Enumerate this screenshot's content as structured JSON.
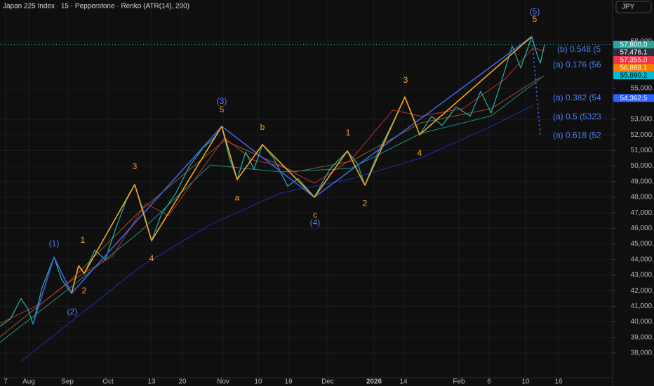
{
  "chart_data": {
    "type": "line",
    "title": "Japan 225 Index · 15 · Pepperstone · Renko (ATR(14), 200)",
    "currency_button": "JPY",
    "grid": true,
    "xlim": [
      0,
      218.25
    ],
    "ylim": [
      36420,
      60660
    ],
    "xticks": [
      {
        "value": 2,
        "label": "7"
      },
      {
        "value": 10.25,
        "label": "Aug"
      },
      {
        "value": 24,
        "label": "Sep"
      },
      {
        "value": 38.5,
        "label": "Oct"
      },
      {
        "value": 54,
        "label": "13"
      },
      {
        "value": 65,
        "label": "20"
      },
      {
        "value": 79.5,
        "label": "Nov"
      },
      {
        "value": 92,
        "label": "10"
      },
      {
        "value": 102.75,
        "label": "19"
      },
      {
        "value": 116.75,
        "label": "Dec"
      },
      {
        "value": 133.25,
        "label": "2026"
      },
      {
        "value": 143.75,
        "label": "14"
      },
      {
        "value": 163.5,
        "label": "Feb"
      },
      {
        "value": 174.25,
        "label": "6"
      },
      {
        "value": 187.25,
        "label": "10"
      },
      {
        "value": 199,
        "label": "16"
      }
    ],
    "yticks": [
      {
        "value": 38000,
        "label": "38,000.0"
      },
      {
        "value": 39000,
        "label": "39,000.0"
      },
      {
        "value": 40000,
        "label": "40,000.0"
      },
      {
        "value": 41000,
        "label": "41,000.0"
      },
      {
        "value": 42000,
        "label": "42,000.0"
      },
      {
        "value": 43000,
        "label": "43,000.0"
      },
      {
        "value": 44000,
        "label": "44,000.0"
      },
      {
        "value": 45000,
        "label": "45,000.0"
      },
      {
        "value": 46000,
        "label": "46,000.0"
      },
      {
        "value": 47000,
        "label": "47,000.0"
      },
      {
        "value": 48000,
        "label": "48,000.0"
      },
      {
        "value": 49000,
        "label": "49,000.0"
      },
      {
        "value": 50000,
        "label": "50,000.0"
      },
      {
        "value": 51000,
        "label": "51,000.0"
      },
      {
        "value": 52000,
        "label": "52,000.0"
      },
      {
        "value": 53000,
        "label": "53,000.0"
      },
      {
        "value": 55000,
        "label": "55,000.0"
      },
      {
        "value": 58000,
        "label": "58,000.0"
      }
    ],
    "series": [
      {
        "color": "#1e2a8c",
        "width": 1.2,
        "x": [
          7.5,
          50,
          75,
          100,
          125,
          150,
          175,
          190
        ],
        "values": [
          37460,
          43540,
          46240,
          48270,
          49170,
          50520,
          52550,
          53900
        ]
      },
      {
        "color": "#1f8f7a",
        "width": 1,
        "x": [
          0,
          25,
          50,
          75,
          100,
          125,
          150,
          175,
          193.75
        ],
        "values": [
          38680,
          42190,
          45800,
          50070,
          49620,
          49850,
          52100,
          53220,
          55790
        ]
      },
      {
        "color": "#8a5a2b",
        "width": 1,
        "x": [
          0,
          25,
          50,
          80,
          105,
          125,
          150,
          175,
          192.5
        ],
        "values": [
          39040,
          42640,
          47140,
          51650,
          49620,
          50300,
          52780,
          53680,
          55700
        ]
      },
      {
        "color": "#b7342f",
        "width": 1,
        "x": [
          0,
          15,
          25,
          40,
          52,
          60,
          80,
          90,
          100,
          112,
          125,
          140,
          150,
          165,
          180,
          190,
          194
        ],
        "values": [
          39900,
          41200,
          42600,
          44200,
          47600,
          46800,
          51800,
          50400,
          50000,
          48900,
          50400,
          53600,
          53200,
          53700,
          55600,
          57600,
          57355
        ]
      },
      {
        "color": "#26a69a",
        "width": 1.3,
        "x": [
          0,
          3.75,
          7.5,
          10,
          11.75,
          15,
          19.25,
          22,
          25.5,
          28,
          30,
          33.75,
          37.5,
          41.25,
          45,
          48,
          51.25,
          54,
          57.5,
          62.5,
          67.5,
          72.5,
          76.25,
          79,
          81.75,
          84.5,
          87.5,
          90.5,
          93.5,
          97.5,
          102.5,
          106.25,
          112,
          117.5,
          123.75,
          127.5,
          130,
          135,
          140,
          144.25,
          147.5,
          149.5,
          153.75,
          157.5,
          162.5,
          167.5,
          171.25,
          175,
          178.75,
          182.5,
          185.5,
          189.5,
          191.25,
          192.5,
          194
        ],
        "values": [
          39710,
          40200,
          41500,
          40800,
          39850,
          42200,
          44150,
          42700,
          41830,
          43600,
          43100,
          44600,
          44000,
          46000,
          47800,
          48810,
          47000,
          45210,
          46900,
          48200,
          50000,
          51200,
          51800,
          52550,
          50500,
          49130,
          50900,
          49800,
          51380,
          50500,
          48700,
          49200,
          48000,
          49800,
          50970,
          50100,
          48770,
          51000,
          52800,
          54440,
          53000,
          52010,
          53200,
          52600,
          53800,
          53200,
          54800,
          53400,
          55500,
          57700,
          56300,
          58320,
          57200,
          56600,
          57800
        ]
      },
      {
        "color": "#3d63e0",
        "width": 1.6,
        "x": [
          11.75,
          19.25,
          25.5,
          79,
          112,
          189.5
        ],
        "values": [
          39850,
          44150,
          41830,
          52550,
          48000,
          58320
        ]
      },
      {
        "color": "#f5a623",
        "width": 1.6,
        "x": [
          25.5,
          28,
          30,
          48,
          54,
          79,
          84.5,
          93.5,
          112,
          123.75,
          130,
          144.25,
          149.5,
          189.5
        ],
        "values": [
          41830,
          43600,
          43100,
          48810,
          45210,
          52550,
          49130,
          51380,
          48000,
          50970,
          48770,
          54440,
          52010,
          58320
        ]
      },
      {
        "color": "#3d63e0",
        "width": 2,
        "dash": "2 4",
        "x": [
          189.5,
          192.5
        ],
        "values": [
          58320,
          51960
        ]
      }
    ],
    "current_price": 57800,
    "annotations": [
      {
        "text": "(5)",
        "x": 190.5,
        "y": 59890,
        "color": "#4f7cf0"
      },
      {
        "text": "5",
        "x": 190.5,
        "y": 59400,
        "color": "#f5a623"
      },
      {
        "text": "(3)",
        "x": 79,
        "y": 54130,
        "color": "#4f7cf0"
      },
      {
        "text": "5",
        "x": 79,
        "y": 53590,
        "color": "#f5a623"
      },
      {
        "text": "(1)",
        "x": 19.25,
        "y": 44980,
        "color": "#4f7cf0"
      },
      {
        "text": "(2)",
        "x": 25.75,
        "y": 40610,
        "color": "#4f7cf0"
      },
      {
        "text": "1",
        "x": 29.5,
        "y": 45210,
        "color": "#f5a623"
      },
      {
        "text": "2",
        "x": 30,
        "y": 41960,
        "color": "#f5a623"
      },
      {
        "text": "3",
        "x": 48,
        "y": 49940,
        "color": "#f5a623"
      },
      {
        "text": "4",
        "x": 54,
        "y": 44040,
        "color": "#f5a623"
      },
      {
        "text": "b",
        "x": 93.5,
        "y": 52460,
        "color": "#f5a623"
      },
      {
        "text": "a",
        "x": 84.5,
        "y": 47950,
        "color": "#f5a623"
      },
      {
        "text": "c",
        "x": 112.25,
        "y": 46830,
        "color": "#f5a623"
      },
      {
        "text": "(4)",
        "x": 112.25,
        "y": 46330,
        "color": "#4f7cf0"
      },
      {
        "text": "1",
        "x": 124,
        "y": 52100,
        "color": "#f5a623"
      },
      {
        "text": "2",
        "x": 130,
        "y": 47590,
        "color": "#f5a623"
      },
      {
        "text": "3",
        "x": 144.5,
        "y": 55480,
        "color": "#f5a623"
      },
      {
        "text": "4",
        "x": 149.5,
        "y": 50790,
        "color": "#f5a623"
      }
    ],
    "fib_labels": [
      {
        "text": "(b) 0.548 (5",
        "x": 198.5,
        "y": 57460
      },
      {
        "text": "(a) 0.176 (56",
        "x": 197,
        "y": 56470
      },
      {
        "text": "(a) 0.382 (54",
        "x": 197,
        "y": 54350
      },
      {
        "text": "(a) 0.5 (5323",
        "x": 197,
        "y": 53140
      },
      {
        "text": "(a) 0.618 (52",
        "x": 197,
        "y": 51960
      }
    ],
    "fib_color": "#4f7cf0",
    "price_labels": {
      "values": [
        57800,
        57476.1,
        57355,
        56888.1,
        55890.2,
        54362.5
      ],
      "value_labels": [
        "57,800.0",
        "57,476.1",
        "57,355.0",
        "56,888.1",
        "55,890.2",
        "54,362.5"
      ],
      "colors": [
        "#26a69a",
        "#2a2e39",
        "#f23645",
        "#f57c00",
        "#00bcd4",
        "#2962ff"
      ],
      "text_colors": [
        "#ffffff",
        "#ffffff",
        "#ffffff",
        "#ffffff",
        "#000000",
        "#ffffff"
      ]
    }
  }
}
